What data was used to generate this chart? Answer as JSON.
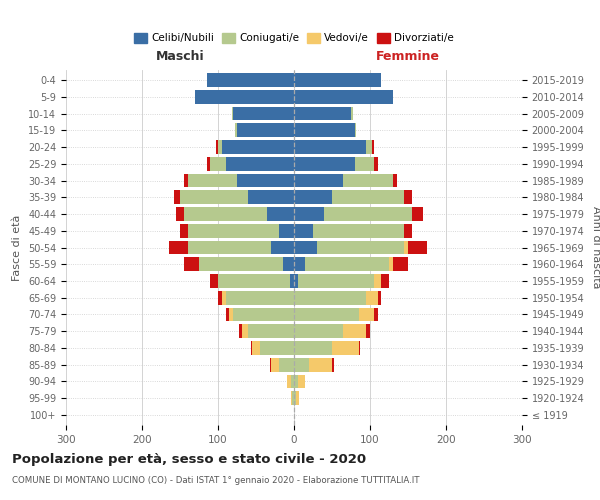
{
  "age_groups": [
    "100+",
    "95-99",
    "90-94",
    "85-89",
    "80-84",
    "75-79",
    "70-74",
    "65-69",
    "60-64",
    "55-59",
    "50-54",
    "45-49",
    "40-44",
    "35-39",
    "30-34",
    "25-29",
    "20-24",
    "15-19",
    "10-14",
    "5-9",
    "0-4"
  ],
  "birth_years": [
    "≤ 1919",
    "1920-1924",
    "1925-1929",
    "1930-1934",
    "1935-1939",
    "1940-1944",
    "1945-1949",
    "1950-1954",
    "1955-1959",
    "1960-1964",
    "1965-1969",
    "1970-1974",
    "1975-1979",
    "1980-1984",
    "1985-1989",
    "1990-1994",
    "1995-1999",
    "2000-2004",
    "2005-2009",
    "2010-2014",
    "2015-2019"
  ],
  "male": {
    "celibi": [
      0,
      0,
      0,
      0,
      0,
      0,
      0,
      0,
      5,
      15,
      30,
      20,
      35,
      60,
      75,
      90,
      95,
      75,
      80,
      130,
      115
    ],
    "coniugati": [
      0,
      2,
      4,
      20,
      45,
      60,
      80,
      90,
      95,
      110,
      110,
      120,
      110,
      90,
      65,
      20,
      5,
      2,
      2,
      0,
      0
    ],
    "vedovi": [
      0,
      2,
      5,
      10,
      10,
      8,
      5,
      5,
      0,
      0,
      0,
      0,
      0,
      0,
      0,
      0,
      0,
      0,
      0,
      0,
      0
    ],
    "divorziati": [
      0,
      0,
      0,
      2,
      2,
      5,
      5,
      5,
      10,
      20,
      25,
      10,
      10,
      8,
      5,
      5,
      2,
      0,
      0,
      0,
      0
    ]
  },
  "female": {
    "nubili": [
      0,
      0,
      0,
      0,
      0,
      0,
      0,
      0,
      5,
      15,
      30,
      25,
      40,
      50,
      65,
      80,
      95,
      80,
      75,
      130,
      115
    ],
    "coniugate": [
      0,
      2,
      5,
      20,
      50,
      65,
      85,
      95,
      100,
      110,
      115,
      120,
      115,
      95,
      65,
      25,
      8,
      2,
      2,
      0,
      0
    ],
    "vedove": [
      0,
      5,
      10,
      30,
      35,
      30,
      20,
      15,
      10,
      5,
      5,
      0,
      0,
      0,
      0,
      0,
      0,
      0,
      0,
      0,
      0
    ],
    "divorziate": [
      0,
      0,
      0,
      2,
      2,
      5,
      5,
      5,
      10,
      20,
      25,
      10,
      15,
      10,
      5,
      5,
      2,
      0,
      0,
      0,
      0
    ]
  },
  "colors": {
    "celibi": "#3a6ea5",
    "coniugati": "#b5c98e",
    "vedovi": "#f5c96a",
    "divorziati": "#cc1111"
  },
  "xlim": 300,
  "title": "Popolazione per età, sesso e stato civile - 2020",
  "subtitle": "COMUNE DI MONTANO LUCINO (CO) - Dati ISTAT 1° gennaio 2020 - Elaborazione TUTTITALIA.IT",
  "ylabel": "Fasce di età",
  "ylabel2": "Anni di nascita",
  "legend_labels": [
    "Celibi/Nubili",
    "Coniugati/e",
    "Vedovi/e",
    "Divorziati/e"
  ],
  "maschi_label": "Maschi",
  "femmine_label": "Femmine",
  "maschi_color": "#333333",
  "femmine_color": "#cc2222",
  "background_color": "#ffffff",
  "grid_color": "#cccccc"
}
